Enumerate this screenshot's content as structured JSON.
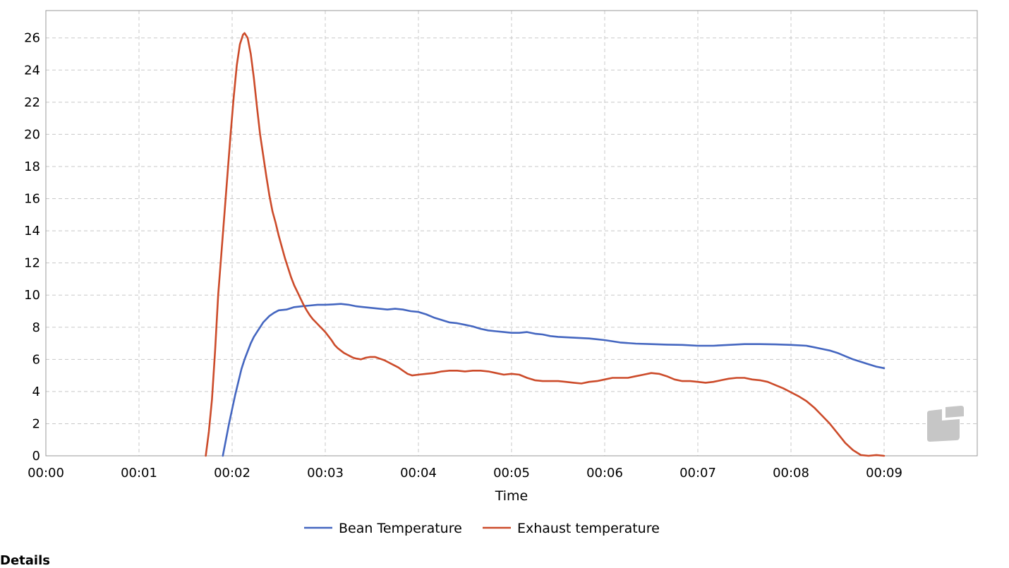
{
  "colors": {
    "bean": "#4466c0",
    "exhaust": "#cc4b2a",
    "watermark": "#c6c6c6"
  },
  "watermark_icon": "brand-logo-icon",
  "footer_text": "Details",
  "chart_data": {
    "type": "line",
    "title": "",
    "xlabel": "Time",
    "ylabel": "",
    "x_unit": "seconds",
    "xlim": [
      0,
      600
    ],
    "ylim": [
      0,
      27.7
    ],
    "x_ticks": [
      {
        "value": 0,
        "label": "00:00"
      },
      {
        "value": 60,
        "label": "00:01"
      },
      {
        "value": 120,
        "label": "00:02"
      },
      {
        "value": 180,
        "label": "00:03"
      },
      {
        "value": 240,
        "label": "00:04"
      },
      {
        "value": 300,
        "label": "00:05"
      },
      {
        "value": 360,
        "label": "00:06"
      },
      {
        "value": 420,
        "label": "00:07"
      },
      {
        "value": 480,
        "label": "00:08"
      },
      {
        "value": 540,
        "label": "00:09"
      }
    ],
    "y_ticks": [
      0,
      2,
      4,
      6,
      8,
      10,
      12,
      14,
      16,
      18,
      20,
      22,
      24,
      26
    ],
    "grid": true,
    "legend_position": "bottom",
    "series": [
      {
        "name": "Bean Temperature",
        "color_key": "bean",
        "points": [
          [
            114,
            0
          ],
          [
            116,
            1.0
          ],
          [
            118,
            2.0
          ],
          [
            120,
            2.9
          ],
          [
            122,
            3.8
          ],
          [
            124,
            4.6
          ],
          [
            126,
            5.4
          ],
          [
            128,
            6.0
          ],
          [
            130,
            6.5
          ],
          [
            132,
            7.0
          ],
          [
            134,
            7.4
          ],
          [
            136,
            7.7
          ],
          [
            138,
            8.0
          ],
          [
            140,
            8.3
          ],
          [
            142,
            8.5
          ],
          [
            144,
            8.7
          ],
          [
            147,
            8.9
          ],
          [
            150,
            9.05
          ],
          [
            155,
            9.1
          ],
          [
            160,
            9.25
          ],
          [
            165,
            9.3
          ],
          [
            170,
            9.35
          ],
          [
            175,
            9.4
          ],
          [
            180,
            9.4
          ],
          [
            185,
            9.42
          ],
          [
            190,
            9.45
          ],
          [
            195,
            9.4
          ],
          [
            200,
            9.3
          ],
          [
            205,
            9.25
          ],
          [
            210,
            9.2
          ],
          [
            215,
            9.15
          ],
          [
            220,
            9.1
          ],
          [
            225,
            9.15
          ],
          [
            230,
            9.1
          ],
          [
            235,
            9.0
          ],
          [
            240,
            8.95
          ],
          [
            245,
            8.8
          ],
          [
            250,
            8.6
          ],
          [
            255,
            8.45
          ],
          [
            260,
            8.3
          ],
          [
            265,
            8.25
          ],
          [
            270,
            8.15
          ],
          [
            275,
            8.05
          ],
          [
            280,
            7.9
          ],
          [
            285,
            7.8
          ],
          [
            290,
            7.75
          ],
          [
            295,
            7.7
          ],
          [
            300,
            7.65
          ],
          [
            305,
            7.65
          ],
          [
            310,
            7.7
          ],
          [
            315,
            7.6
          ],
          [
            320,
            7.55
          ],
          [
            325,
            7.45
          ],
          [
            330,
            7.4
          ],
          [
            340,
            7.35
          ],
          [
            350,
            7.3
          ],
          [
            355,
            7.25
          ],
          [
            360,
            7.2
          ],
          [
            370,
            7.05
          ],
          [
            380,
            6.98
          ],
          [
            390,
            6.95
          ],
          [
            400,
            6.92
          ],
          [
            410,
            6.9
          ],
          [
            420,
            6.85
          ],
          [
            430,
            6.85
          ],
          [
            440,
            6.9
          ],
          [
            450,
            6.95
          ],
          [
            460,
            6.95
          ],
          [
            470,
            6.93
          ],
          [
            480,
            6.9
          ],
          [
            490,
            6.85
          ],
          [
            495,
            6.75
          ],
          [
            500,
            6.65
          ],
          [
            505,
            6.55
          ],
          [
            510,
            6.4
          ],
          [
            515,
            6.2
          ],
          [
            520,
            6.0
          ],
          [
            525,
            5.85
          ],
          [
            530,
            5.7
          ],
          [
            535,
            5.55
          ],
          [
            540,
            5.45
          ]
        ]
      },
      {
        "name": "Exhaust temperature",
        "color_key": "exhaust",
        "points": [
          [
            103,
            0
          ],
          [
            105,
            1.5
          ],
          [
            107,
            3.5
          ],
          [
            109,
            6.5
          ],
          [
            111,
            10.0
          ],
          [
            113,
            12.5
          ],
          [
            115,
            15.0
          ],
          [
            117,
            17.5
          ],
          [
            119,
            20.0
          ],
          [
            121,
            22.3
          ],
          [
            123,
            24.3
          ],
          [
            125,
            25.6
          ],
          [
            127,
            26.2
          ],
          [
            128,
            26.3
          ],
          [
            130,
            26.0
          ],
          [
            132,
            25.0
          ],
          [
            134,
            23.5
          ],
          [
            136,
            21.7
          ],
          [
            138,
            20.0
          ],
          [
            140,
            18.7
          ],
          [
            142,
            17.4
          ],
          [
            144,
            16.2
          ],
          [
            146,
            15.2
          ],
          [
            148,
            14.5
          ],
          [
            150,
            13.7
          ],
          [
            152,
            13.0
          ],
          [
            154,
            12.3
          ],
          [
            156,
            11.7
          ],
          [
            158,
            11.1
          ],
          [
            160,
            10.6
          ],
          [
            162,
            10.2
          ],
          [
            164,
            9.8
          ],
          [
            166,
            9.4
          ],
          [
            168,
            9.05
          ],
          [
            170,
            8.75
          ],
          [
            172,
            8.5
          ],
          [
            174,
            8.3
          ],
          [
            176,
            8.1
          ],
          [
            178,
            7.9
          ],
          [
            180,
            7.7
          ],
          [
            182,
            7.45
          ],
          [
            184,
            7.2
          ],
          [
            186,
            6.9
          ],
          [
            188,
            6.7
          ],
          [
            190,
            6.55
          ],
          [
            192,
            6.4
          ],
          [
            194,
            6.3
          ],
          [
            196,
            6.2
          ],
          [
            198,
            6.1
          ],
          [
            200,
            6.05
          ],
          [
            203,
            6.0
          ],
          [
            206,
            6.1
          ],
          [
            209,
            6.15
          ],
          [
            212,
            6.15
          ],
          [
            215,
            6.05
          ],
          [
            218,
            5.95
          ],
          [
            221,
            5.8
          ],
          [
            224,
            5.65
          ],
          [
            227,
            5.5
          ],
          [
            230,
            5.3
          ],
          [
            233,
            5.1
          ],
          [
            236,
            5.0
          ],
          [
            240,
            5.05
          ],
          [
            245,
            5.1
          ],
          [
            250,
            5.15
          ],
          [
            255,
            5.25
          ],
          [
            260,
            5.3
          ],
          [
            265,
            5.3
          ],
          [
            270,
            5.25
          ],
          [
            275,
            5.3
          ],
          [
            280,
            5.3
          ],
          [
            285,
            5.25
          ],
          [
            290,
            5.15
          ],
          [
            295,
            5.05
          ],
          [
            300,
            5.1
          ],
          [
            305,
            5.05
          ],
          [
            310,
            4.85
          ],
          [
            315,
            4.7
          ],
          [
            320,
            4.65
          ],
          [
            330,
            4.65
          ],
          [
            335,
            4.6
          ],
          [
            340,
            4.55
          ],
          [
            345,
            4.5
          ],
          [
            350,
            4.6
          ],
          [
            355,
            4.65
          ],
          [
            360,
            4.75
          ],
          [
            365,
            4.85
          ],
          [
            370,
            4.85
          ],
          [
            375,
            4.85
          ],
          [
            380,
            4.95
          ],
          [
            385,
            5.05
          ],
          [
            390,
            5.15
          ],
          [
            395,
            5.1
          ],
          [
            400,
            4.95
          ],
          [
            405,
            4.75
          ],
          [
            410,
            4.65
          ],
          [
            415,
            4.65
          ],
          [
            420,
            4.6
          ],
          [
            425,
            4.55
          ],
          [
            430,
            4.6
          ],
          [
            435,
            4.7
          ],
          [
            440,
            4.8
          ],
          [
            445,
            4.85
          ],
          [
            450,
            4.85
          ],
          [
            455,
            4.75
          ],
          [
            460,
            4.7
          ],
          [
            465,
            4.6
          ],
          [
            470,
            4.4
          ],
          [
            475,
            4.2
          ],
          [
            480,
            3.95
          ],
          [
            485,
            3.7
          ],
          [
            490,
            3.4
          ],
          [
            495,
            3.0
          ],
          [
            500,
            2.5
          ],
          [
            505,
            2.0
          ],
          [
            510,
            1.4
          ],
          [
            515,
            0.8
          ],
          [
            520,
            0.35
          ],
          [
            525,
            0.05
          ],
          [
            530,
            0.0
          ],
          [
            535,
            0.05
          ],
          [
            540,
            0.0
          ]
        ]
      }
    ]
  }
}
